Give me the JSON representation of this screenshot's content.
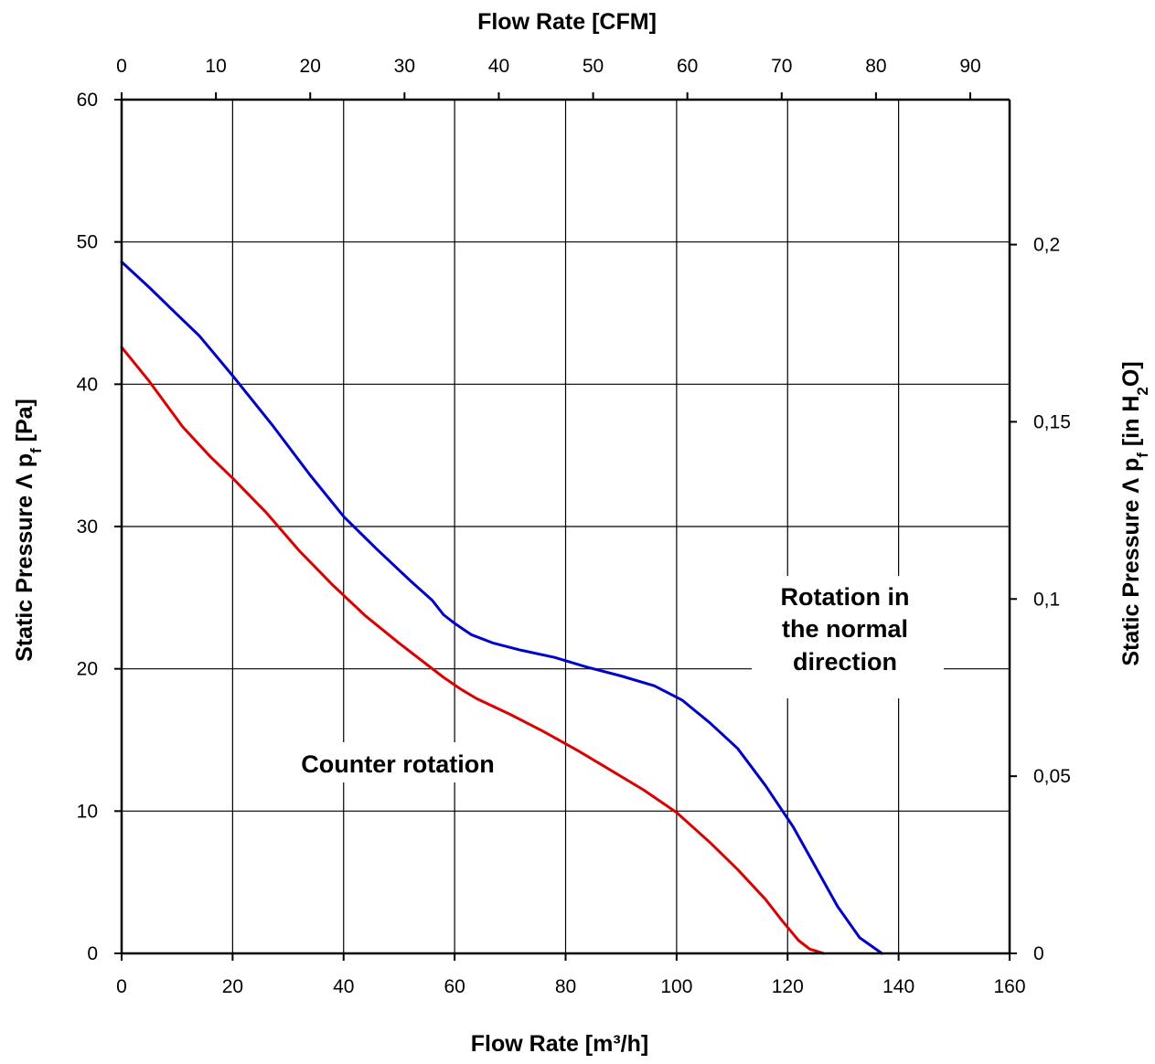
{
  "chart_data": {
    "type": "line",
    "x_axis_bottom": {
      "label": "Flow Rate [m³/h]",
      "range": [
        0,
        160
      ],
      "ticks": [
        "0",
        "20",
        "40",
        "60",
        "80",
        "100",
        "120",
        "140",
        "160"
      ]
    },
    "x_axis_top": {
      "label": "Flow Rate [CFM]",
      "range": [
        0,
        94.17
      ],
      "ticks": [
        "0",
        "10",
        "20",
        "30",
        "40",
        "50",
        "60",
        "70",
        "80",
        "90"
      ]
    },
    "y_axis_left": {
      "label_main": "Static Pressure Λ p",
      "label_sub": "f",
      "label_tail": " [Pa]",
      "range": [
        0,
        60
      ],
      "ticks": [
        "0",
        "10",
        "20",
        "30",
        "40",
        "50",
        "60"
      ]
    },
    "y_axis_right": {
      "label_main": "Static Pressure Λ p",
      "label_sub": "f",
      "label_mid": " [in H",
      "label_sub2": "2",
      "label_tail": "O]",
      "range": [
        0,
        0.2409
      ],
      "ticks": [
        "0",
        "0,05",
        "0,1",
        "0,15",
        "0,2"
      ]
    },
    "grid": true,
    "annotations": {
      "normal": [
        "Rotation in",
        "the normal",
        "direction"
      ],
      "counter": "Counter rotation"
    },
    "series": [
      {
        "color": "#0000cc",
        "x": [
          0,
          5,
          10,
          14,
          20,
          27,
          34,
          40,
          46,
          52,
          56,
          58,
          60,
          63,
          67,
          72,
          78,
          84,
          90,
          96,
          101,
          106,
          111,
          116,
          121,
          125,
          129,
          133,
          137
        ],
        "y": [
          48.6,
          46.8,
          44.9,
          43.4,
          40.6,
          37.2,
          33.6,
          30.7,
          28.4,
          26.2,
          24.8,
          23.8,
          23.2,
          22.4,
          21.8,
          21.3,
          20.8,
          20.1,
          19.5,
          18.8,
          17.8,
          16.2,
          14.4,
          11.8,
          8.9,
          6.1,
          3.3,
          1.1,
          0
        ]
      },
      {
        "color": "#dd0000",
        "x": [
          0,
          5,
          11,
          16,
          20,
          26,
          32,
          38,
          44,
          50,
          55,
          58,
          61,
          64,
          70,
          76,
          82,
          88,
          94,
          100,
          106,
          111,
          116,
          119,
          122,
          124,
          126.5
        ],
        "y": [
          42.6,
          40.2,
          37.0,
          34.9,
          33.4,
          31.0,
          28.3,
          25.9,
          23.7,
          21.8,
          20.3,
          19.4,
          18.6,
          17.9,
          16.8,
          15.6,
          14.3,
          12.9,
          11.5,
          9.9,
          7.8,
          5.9,
          3.8,
          2.3,
          0.9,
          0.3,
          0
        ]
      }
    ]
  }
}
